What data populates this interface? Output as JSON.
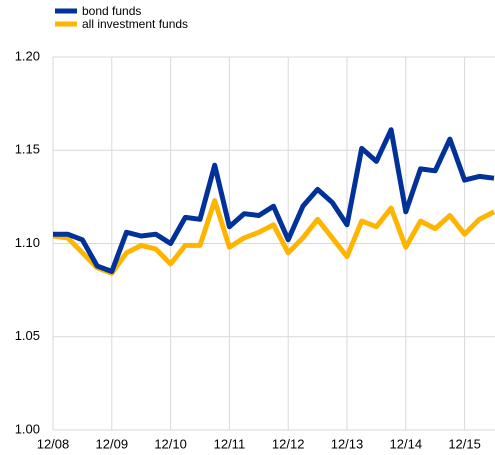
{
  "chart_data": {
    "type": "line",
    "categories": [
      "12/08",
      null,
      null,
      null,
      "12/09",
      null,
      null,
      null,
      "12/10",
      null,
      null,
      null,
      "12/11",
      null,
      null,
      null,
      "12/12",
      null,
      null,
      null,
      "12/13",
      null,
      null,
      null,
      "12/14",
      null,
      null,
      null,
      "12/15",
      null,
      null
    ],
    "series": [
      {
        "name": "bond  funds",
        "color": "#003299",
        "values": [
          1.105,
          1.105,
          1.102,
          1.088,
          1.085,
          1.106,
          1.104,
          1.105,
          1.1,
          1.114,
          1.113,
          1.142,
          1.109,
          1.116,
          1.115,
          1.12,
          1.102,
          1.12,
          1.129,
          1.122,
          1.11,
          1.151,
          1.144,
          1.161,
          1.117,
          1.14,
          1.139,
          1.156,
          1.134,
          1.136,
          1.135
        ]
      },
      {
        "name": "all investment  funds",
        "color": "#ffb400",
        "values": [
          1.104,
          1.103,
          1.095,
          1.087,
          1.084,
          1.095,
          1.099,
          1.097,
          1.089,
          1.099,
          1.099,
          1.123,
          1.098,
          1.103,
          1.106,
          1.11,
          1.095,
          1.103,
          1.113,
          1.103,
          1.093,
          1.112,
          1.109,
          1.119,
          1.098,
          1.112,
          1.108,
          1.115,
          1.105,
          1.113,
          1.117
        ]
      }
    ],
    "ylim": [
      1.0,
      1.2
    ],
    "yticks": [
      {
        "value": 1.0,
        "label": "1.00"
      },
      {
        "value": 1.05,
        "label": "1.05"
      },
      {
        "value": 1.1,
        "label": "1.10"
      },
      {
        "value": 1.15,
        "label": "1.15"
      },
      {
        "value": 1.2,
        "label": "1.20"
      }
    ],
    "grid": true,
    "legend": "top-left"
  }
}
